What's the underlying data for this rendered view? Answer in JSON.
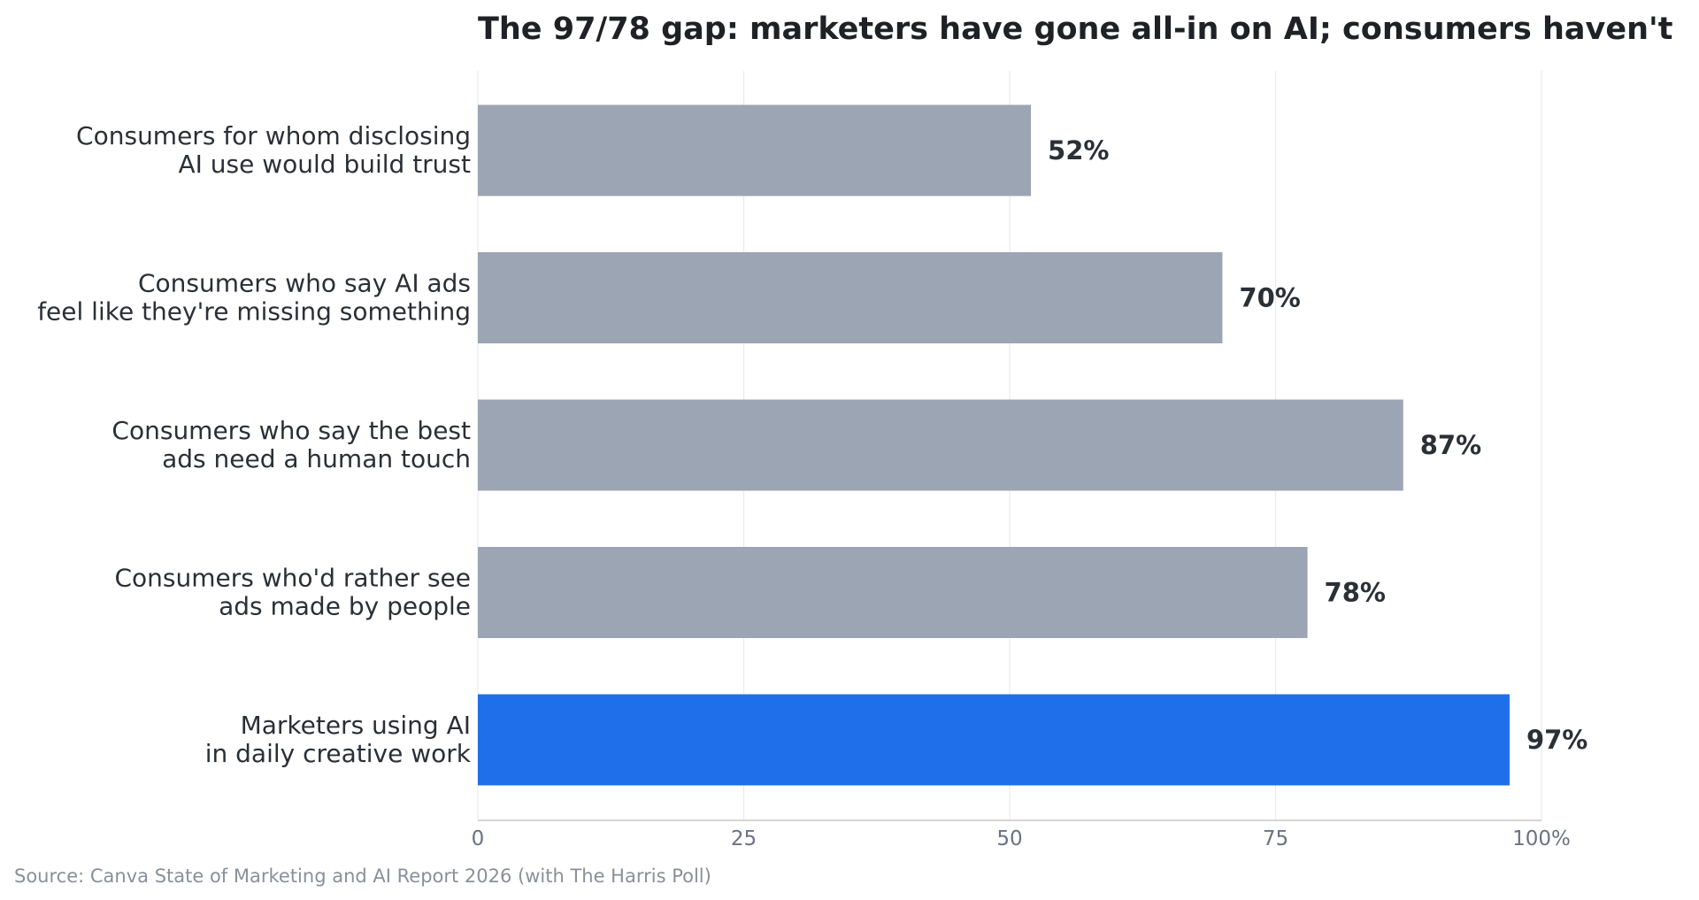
{
  "chart_data": {
    "type": "bar",
    "orientation": "horizontal",
    "title": "The 97/78 gap: marketers have gone all-in on AI; consumers haven't",
    "xlabel": "",
    "ylabel": "",
    "xlim": [
      0,
      100
    ],
    "x_ticks": [
      {
        "value": 0,
        "label": "0"
      },
      {
        "value": 25,
        "label": "25"
      },
      {
        "value": 50,
        "label": "50"
      },
      {
        "value": 75,
        "label": "75"
      },
      {
        "value": 100,
        "label": "100%"
      }
    ],
    "grid": "vertical",
    "categories": [
      [
        "Consumers for whom disclosing",
        "AI use would build trust"
      ],
      [
        "Consumers who say AI ads",
        "feel like they're missing something"
      ],
      [
        "Consumers who say the best",
        "ads need a human touch"
      ],
      [
        "Consumers who'd rather see",
        "ads made by people"
      ],
      [
        "Marketers using AI",
        "in daily creative work"
      ]
    ],
    "values": [
      52,
      70,
      87,
      78,
      97
    ],
    "value_labels": [
      "52%",
      "70%",
      "87%",
      "78%",
      "97%"
    ],
    "colors": [
      "#9ba5b3",
      "#9ba5b3",
      "#9ba5b3",
      "#9ba5b3",
      "#1f6feb"
    ],
    "note": "Source: Canva State of Marketing and AI Report 2026 (with The Harris Poll)"
  }
}
